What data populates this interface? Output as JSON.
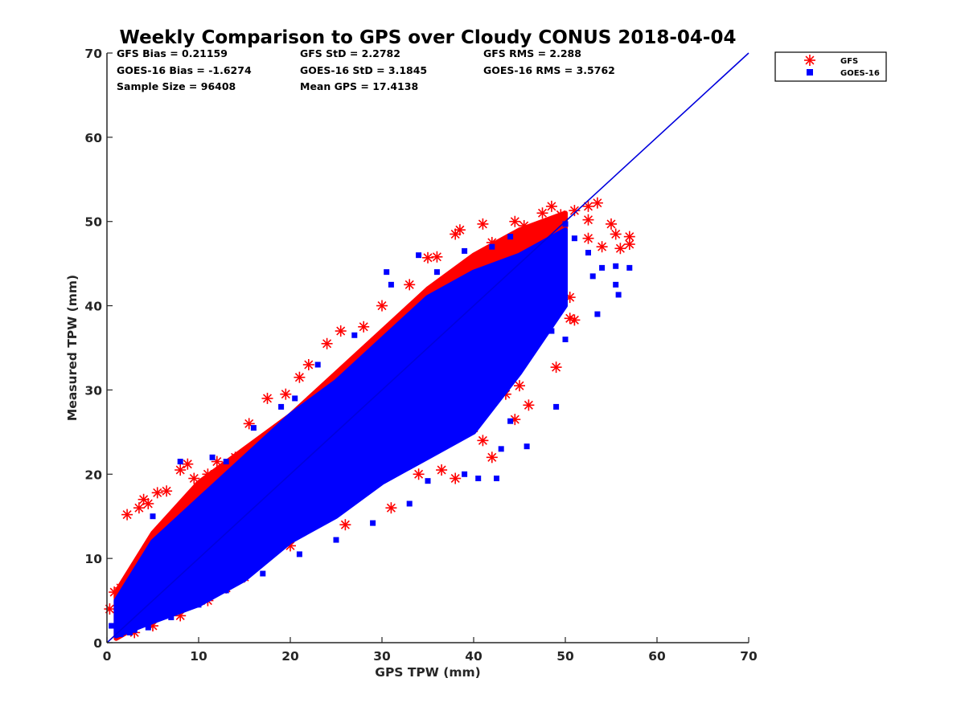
{
  "chart_data": {
    "type": "scatter",
    "title": "Weekly Comparison to GPS over Cloudy CONUS 2018-04-04",
    "xlabel": "GPS TPW (mm)",
    "ylabel": "Measured TPW (mm)",
    "xlim": [
      0,
      70
    ],
    "ylim": [
      0,
      70
    ],
    "xticks": [
      "0",
      "10",
      "20",
      "30",
      "40",
      "50",
      "60",
      "70"
    ],
    "yticks": [
      "0",
      "10",
      "20",
      "30",
      "40",
      "50",
      "60",
      "70"
    ],
    "grid": false,
    "legend_position": "outside-top-right",
    "stats": [
      [
        "GFS Bias = 0.21159",
        "GFS StD = 2.2782",
        "GFS RMS = 2.288"
      ],
      [
        "GOES-16 Bias = -1.6274",
        "GOES-16 StD = 3.1845",
        "GOES-16 RMS = 3.5762"
      ],
      [
        "Sample Size = 96408",
        "Mean GPS = 17.4138"
      ]
    ],
    "reference_line": {
      "x": [
        0,
        70
      ],
      "y": [
        0,
        70
      ],
      "color": "#0000dd"
    },
    "series": [
      {
        "name": "GFS",
        "marker": "asterisk",
        "color": "#ff0000",
        "core_band": [
          [
            1,
            0.5,
            6
          ],
          [
            5,
            3,
            13
          ],
          [
            10,
            6,
            19
          ],
          [
            15,
            10,
            23
          ],
          [
            20,
            14,
            27
          ],
          [
            25,
            18,
            32
          ],
          [
            30,
            22,
            37
          ],
          [
            35,
            25,
            42
          ],
          [
            40,
            28,
            46
          ],
          [
            45,
            36,
            49
          ],
          [
            50,
            42,
            51
          ]
        ],
        "points": [
          [
            0.3,
            4
          ],
          [
            0.8,
            6
          ],
          [
            1.5,
            6.5
          ],
          [
            2.2,
            15.2
          ],
          [
            3.5,
            16
          ],
          [
            4,
            17
          ],
          [
            4.5,
            16.5
          ],
          [
            5.5,
            17.8
          ],
          [
            6.5,
            18
          ],
          [
            8,
            20.5
          ],
          [
            8.8,
            21.2
          ],
          [
            9.5,
            19.5
          ],
          [
            11,
            20
          ],
          [
            12,
            21.5
          ],
          [
            14,
            22
          ],
          [
            15.5,
            26
          ],
          [
            17.5,
            29
          ],
          [
            19.5,
            29.5
          ],
          [
            21,
            31.5
          ],
          [
            22,
            33
          ],
          [
            24,
            35.5
          ],
          [
            25.5,
            37
          ],
          [
            28,
            37.5
          ],
          [
            30,
            40
          ],
          [
            33,
            42.5
          ],
          [
            35,
            45.7
          ],
          [
            36,
            45.8
          ],
          [
            38,
            48.5
          ],
          [
            38.5,
            49
          ],
          [
            41,
            49.7
          ],
          [
            42,
            47.5
          ],
          [
            44.5,
            50
          ],
          [
            45.5,
            49.5
          ],
          [
            47.5,
            51
          ],
          [
            48.5,
            51.8
          ],
          [
            49.5,
            50.8
          ],
          [
            51,
            51.3
          ],
          [
            52.5,
            51.8
          ],
          [
            53.5,
            52.2
          ],
          [
            52.5,
            50.2
          ],
          [
            52.5,
            48
          ],
          [
            54,
            47
          ],
          [
            55,
            49.7
          ],
          [
            55.5,
            48.5
          ],
          [
            56,
            46.8
          ],
          [
            57,
            48.2
          ],
          [
            57,
            47.3
          ],
          [
            50.5,
            41
          ],
          [
            50.5,
            38.5
          ],
          [
            51,
            38.3
          ],
          [
            49,
            32.7
          ],
          [
            46,
            28.2
          ],
          [
            45,
            30.5
          ],
          [
            42,
            22
          ],
          [
            41,
            24
          ],
          [
            44,
            33
          ],
          [
            48,
            42
          ],
          [
            46.5,
            45
          ],
          [
            47,
            46.5
          ],
          [
            44.5,
            26.5
          ],
          [
            43.5,
            29.5
          ],
          [
            38,
            19.5
          ],
          [
            36.5,
            20.5
          ],
          [
            34,
            20
          ],
          [
            31,
            16
          ],
          [
            26,
            14
          ],
          [
            20,
            11.5
          ],
          [
            15,
            7.8
          ],
          [
            11,
            5
          ],
          [
            8,
            3.2
          ],
          [
            5,
            2
          ],
          [
            3,
            1.2
          ],
          [
            13,
            6.5
          ],
          [
            40,
            25.5
          ]
        ]
      },
      {
        "name": "GOES-16",
        "marker": "square",
        "color": "#0000ff",
        "core_band": [
          [
            1,
            0.8,
            5
          ],
          [
            5,
            2.5,
            12
          ],
          [
            10,
            4.5,
            17
          ],
          [
            15,
            7.5,
            22
          ],
          [
            20,
            12,
            27
          ],
          [
            25,
            15,
            31
          ],
          [
            30,
            19,
            36
          ],
          [
            35,
            22,
            41
          ],
          [
            40,
            25,
            44
          ],
          [
            45,
            32,
            46
          ],
          [
            50,
            40,
            49
          ]
        ],
        "points": [
          [
            0.5,
            2
          ],
          [
            1.5,
            1
          ],
          [
            3,
            1.5
          ],
          [
            5,
            15
          ],
          [
            8,
            21.5
          ],
          [
            11.5,
            22
          ],
          [
            13,
            21.5
          ],
          [
            16,
            25.5
          ],
          [
            19,
            28
          ],
          [
            20.5,
            29
          ],
          [
            23,
            33
          ],
          [
            27,
            36.5
          ],
          [
            30.5,
            44
          ],
          [
            31,
            42.5
          ],
          [
            34,
            46
          ],
          [
            36,
            44
          ],
          [
            39,
            46.5
          ],
          [
            42,
            47
          ],
          [
            44,
            48.2
          ],
          [
            46,
            44
          ],
          [
            48,
            46
          ],
          [
            50,
            49.7
          ],
          [
            51,
            48
          ],
          [
            52.5,
            46.3
          ],
          [
            54,
            44.5
          ],
          [
            55.5,
            44.7
          ],
          [
            55.5,
            42.5
          ],
          [
            55.8,
            41.3
          ],
          [
            57,
            44.5
          ],
          [
            53,
            43.5
          ],
          [
            53.5,
            39
          ],
          [
            50,
            36
          ],
          [
            49,
            28
          ],
          [
            45.8,
            23.3
          ],
          [
            44,
            26.3
          ],
          [
            43,
            23
          ],
          [
            42.5,
            19.5
          ],
          [
            40.5,
            19.5
          ],
          [
            39,
            20
          ],
          [
            35,
            19.2
          ],
          [
            33,
            16.5
          ],
          [
            29,
            14.2
          ],
          [
            25,
            12.2
          ],
          [
            21,
            10.5
          ],
          [
            17,
            8.2
          ],
          [
            13,
            6.2
          ],
          [
            10,
            4.5
          ],
          [
            7,
            3
          ],
          [
            4.5,
            1.8
          ],
          [
            2.5,
            1.2
          ],
          [
            46.5,
            40
          ],
          [
            47.5,
            42.5
          ],
          [
            48.5,
            37
          ],
          [
            41,
            30.5
          ],
          [
            38,
            25.5
          ]
        ]
      }
    ]
  }
}
